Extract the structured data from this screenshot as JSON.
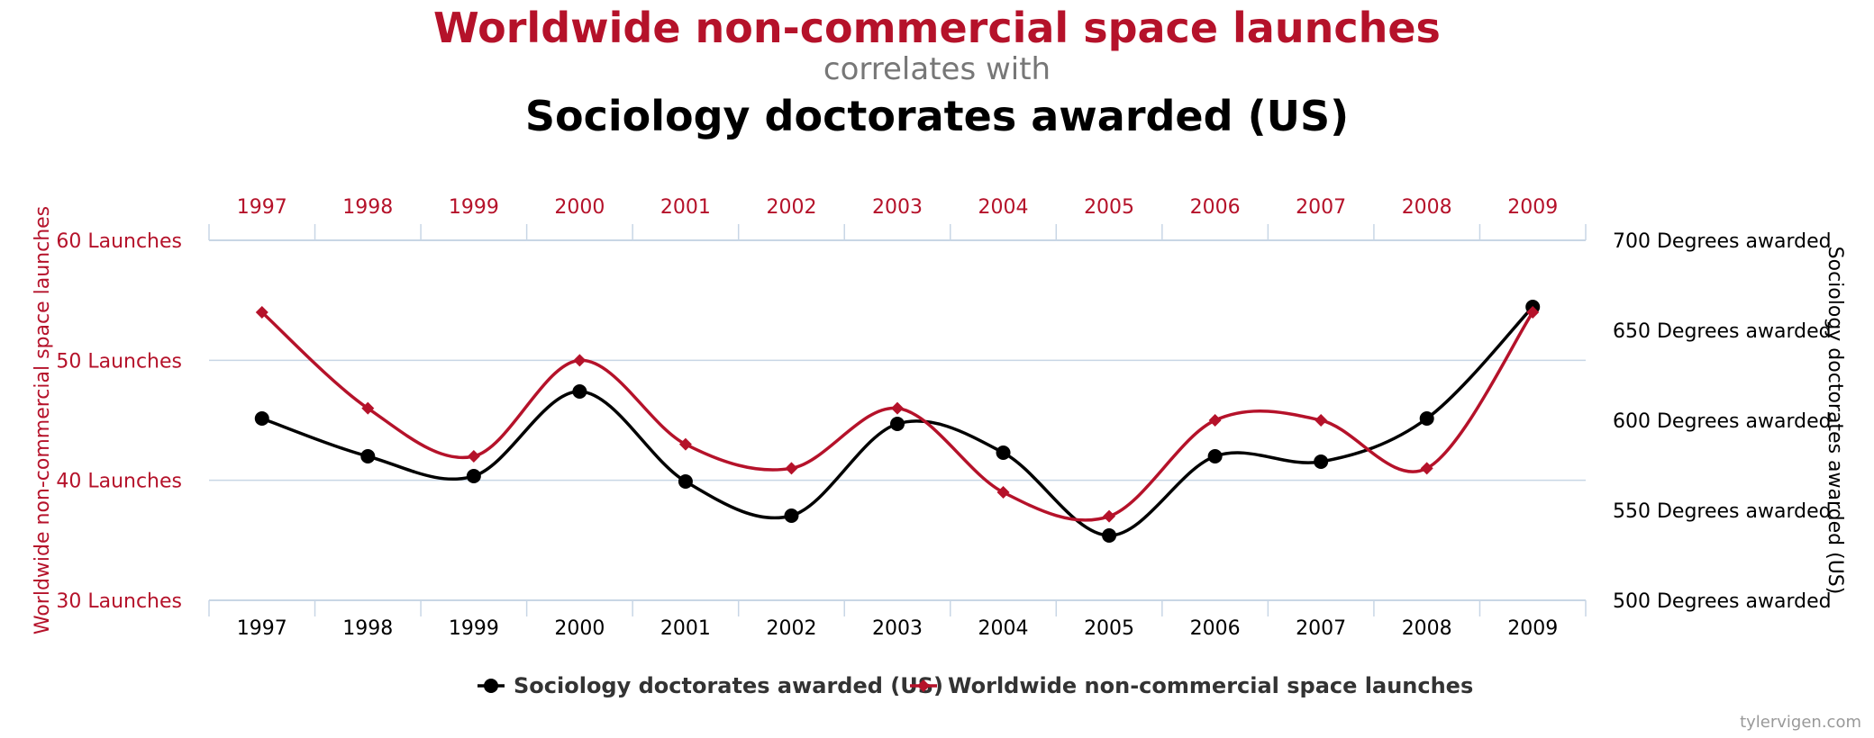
{
  "header": {
    "title_primary": "Worldwide non-commercial space launches",
    "connector": "correlates with",
    "title_secondary": "Sociology doctorates awarded (US)"
  },
  "colors": {
    "primary_series": "#b5122a",
    "secondary_series": "#000000",
    "grid": "#c8d6e5",
    "connector": "#777777"
  },
  "credit": "tylervigen.com",
  "chart_data": {
    "type": "line",
    "x": [
      "1997",
      "1998",
      "1999",
      "2000",
      "2001",
      "2002",
      "2003",
      "2004",
      "2005",
      "2006",
      "2007",
      "2008",
      "2009"
    ],
    "series": [
      {
        "name": "Worldwide non-commercial space launches",
        "axis": "left",
        "marker": "diamond",
        "values": [
          54,
          46,
          42,
          50,
          43,
          41,
          46,
          39,
          37,
          45,
          45,
          41,
          54
        ]
      },
      {
        "name": "Sociology doctorates awarded (US)",
        "axis": "right",
        "marker": "circle",
        "values": [
          601,
          580,
          569,
          616,
          566,
          547,
          598,
          582,
          536,
          580,
          577,
          601,
          663
        ]
      }
    ],
    "y_left": {
      "label": "Worldwide non-commercial space launches",
      "range": [
        30,
        60
      ],
      "ticks": [
        "30 Launches",
        "40 Launches",
        "50 Launches",
        "60 Launches"
      ]
    },
    "y_right": {
      "label": "Sociology doctorates awarded (US)",
      "range": [
        500,
        700
      ],
      "ticks": [
        "500 Degrees awarded",
        "550 Degrees awarded",
        "600 Degrees awarded",
        "650 Degrees awarded",
        "700 Degrees awarded"
      ]
    },
    "grid": true,
    "legend_position": "bottom",
    "legend": [
      "Sociology doctorates awarded (US)",
      "Worldwide non-commercial space launches"
    ]
  }
}
